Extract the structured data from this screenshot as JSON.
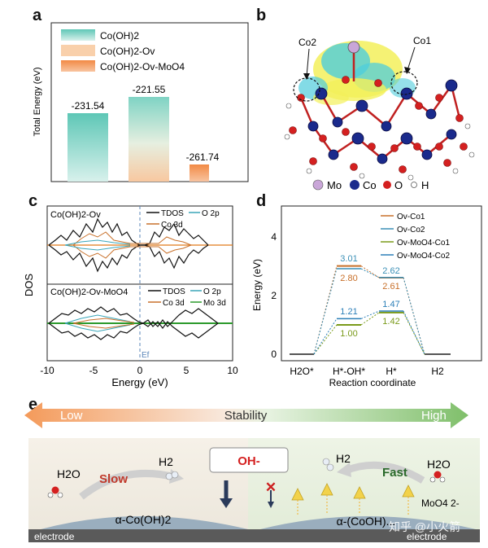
{
  "panels": {
    "a": "a",
    "b": "b",
    "c": "c",
    "d": "d",
    "e": "e"
  },
  "panel_a": {
    "legend": [
      "Co(OH)2",
      "Co(OH)2-Ov",
      "Co(OH)2-Ov-MoO4"
    ],
    "ylabel": "Total Energy (eV)",
    "value_labels": [
      "-231.54",
      "-221.55",
      "-261.74"
    ],
    "colors": {
      "coh2": "#7fd1c6",
      "ov": "#f9c9a0",
      "moo4": "#f49a5a"
    }
  },
  "chart_data": {
    "type": "bar",
    "categories": [
      "Co(OH)2",
      "Co(OH)2-Ov",
      "Co(OH)2-Ov-MoO4"
    ],
    "values": [
      -231.54,
      -221.55,
      -261.74
    ],
    "ylabel": "Total Energy (eV)"
  },
  "panel_b": {
    "labels": {
      "co2": "Co2",
      "co1": "Co1"
    },
    "legend": [
      {
        "label": "Mo",
        "color": "#c9a6d8"
      },
      {
        "label": "Co",
        "color": "#1a2a8c"
      },
      {
        "label": "O",
        "color": "#d42020"
      },
      {
        "label": "H",
        "color": "#ffffff"
      }
    ]
  },
  "panel_c": {
    "ylabel": "DOS",
    "xlabel": "Energy (eV)",
    "xticks": [
      "-10",
      "-5",
      "0",
      "5",
      "10"
    ],
    "ef_label": "Ef",
    "top": {
      "title": "Co(OH)2-Ov",
      "legend": [
        "TDOS",
        "O 2p",
        "Co 3d"
      ]
    },
    "bottom": {
      "title": "Co(OH)2-Ov-MoO4",
      "legend": [
        "TDOS",
        "O 2p",
        "Co 3d",
        "Mo 3d"
      ]
    }
  },
  "panel_d": {
    "ylabel": "Energy (eV)",
    "xlabel": "Reaction coordinate",
    "yticks": [
      "0",
      "2",
      "4"
    ],
    "xticks": [
      "H2O*",
      "H*-OH*",
      "H*",
      "H2"
    ],
    "legend": [
      "Ov-Co1",
      "Ov-Co2",
      "Ov-MoO4-Co1",
      "Ov-MoO4-Co2"
    ],
    "values": {
      "a": "3.01",
      "b": "2.80",
      "c": "2.62",
      "d": "2.61",
      "e": "1.21",
      "f": "1.00",
      "g": "1.47",
      "h": "1.42"
    },
    "colors": [
      "#c8702a",
      "#3a8fb6",
      "#7a9a1a",
      "#2c7fb8"
    ]
  },
  "panel_e": {
    "stability": {
      "low": "Low",
      "center": "Stability",
      "high": "High"
    },
    "left": {
      "h2o": "H2O",
      "h2": "H2",
      "slow": "Slow",
      "material": "α-Co(OH)2",
      "electrode": "electrode"
    },
    "oh": "OH-",
    "right": {
      "h2o": "H2O",
      "h2": "H2",
      "fast": "Fast",
      "moo4": "MoO4 2-",
      "material": "α-(CoOH)...",
      "electrode": "electrode"
    },
    "watermark": "知乎 @小火箭"
  }
}
